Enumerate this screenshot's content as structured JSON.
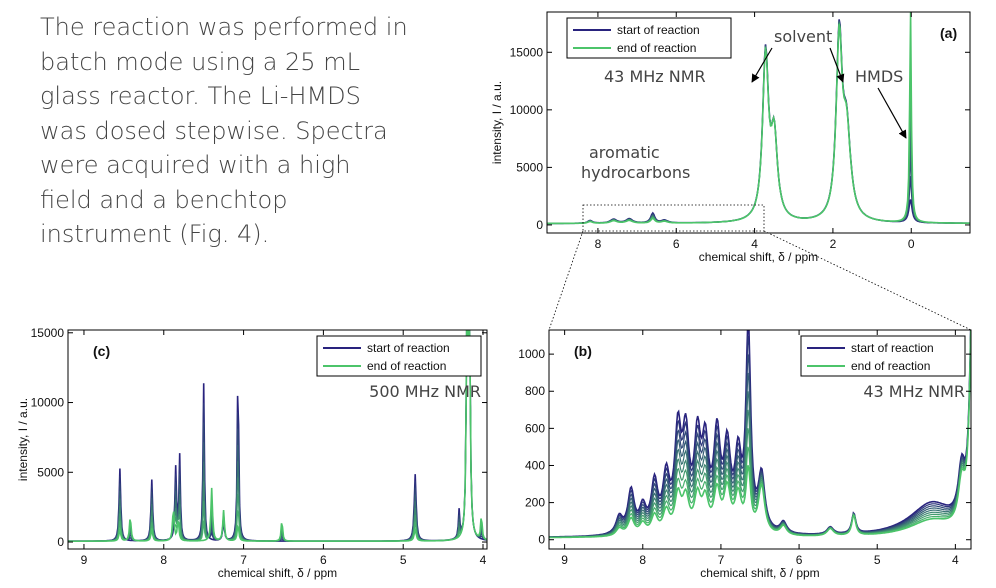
{
  "caption": [
    "The reaction was performed in",
    "batch mode using a 25 mL",
    "glass reactor. The Li-HMDS",
    "was dosed stepwise. Spectra",
    "were acquired with a high",
    "field and a benchtop",
    "instrument (Fig. 4)."
  ],
  "colors": {
    "start": "#29237e",
    "end": "#4cc46a",
    "axis": "#000000",
    "text": "#444444"
  },
  "chart_data": [
    {
      "id": "a",
      "type": "line",
      "panel_label": "(a)",
      "xlabel": "chemical shift, δ / ppm",
      "ylabel": "intensity, I / a.u.",
      "xlim": [
        9.3,
        -1.5
      ],
      "x_reversed": true,
      "ylim": [
        -700,
        18500
      ],
      "xticks": [
        8,
        6,
        4,
        2,
        0
      ],
      "xtick_labels": [
        "8",
        "6",
        "4",
        "2",
        "0"
      ],
      "yticks": [
        0,
        5000,
        10000,
        15000
      ],
      "ytick_labels": [
        "0",
        "5000",
        "10000",
        "15000"
      ],
      "legend": [
        "start of reaction",
        "end of reaction"
      ],
      "legend_position": "top-left",
      "annotations": [
        "43 MHz NMR",
        "solvent",
        "HMDS",
        "aromatic",
        "hydrocarbons"
      ],
      "series": [
        {
          "name": "start of reaction",
          "peaks": [
            [
              8.2,
              250,
              0.07
            ],
            [
              7.6,
              350,
              0.1
            ],
            [
              7.2,
              380,
              0.1
            ],
            [
              6.6,
              850,
              0.06
            ],
            [
              6.3,
              250,
              0.1
            ],
            [
              3.72,
              14300,
              0.09
            ],
            [
              3.5,
              7000,
              0.1
            ],
            [
              1.84,
              15600,
              0.09
            ],
            [
              1.65,
              7500,
              0.12
            ],
            [
              0.02,
              2000,
              0.05
            ]
          ],
          "baseline": 120
        },
        {
          "name": "end of reaction",
          "peaks": [
            [
              8.2,
              160,
              0.07
            ],
            [
              7.6,
              220,
              0.1
            ],
            [
              7.2,
              240,
              0.1
            ],
            [
              6.6,
              400,
              0.06
            ],
            [
              6.3,
              150,
              0.1
            ],
            [
              3.72,
              14000,
              0.09
            ],
            [
              3.5,
              7000,
              0.1
            ],
            [
              1.84,
              15200,
              0.09
            ],
            [
              1.65,
              7400,
              0.12
            ],
            [
              0.02,
              18500,
              0.025
            ]
          ],
          "baseline": 120
        }
      ]
    },
    {
      "id": "c",
      "type": "line",
      "panel_label": "(c)",
      "xlabel": "chemical shift, δ / ppm",
      "ylabel": "intensity, I / a.u.",
      "xlim": [
        9.2,
        3.95
      ],
      "x_reversed": true,
      "ylim": [
        -500,
        15200
      ],
      "xticks": [
        9,
        8,
        7,
        6,
        5,
        4
      ],
      "xtick_labels": [
        "9",
        "8",
        "7",
        "6",
        "5",
        "4"
      ],
      "yticks": [
        0,
        5000,
        10000,
        15000
      ],
      "ytick_labels": [
        "0",
        "5000",
        "10000",
        "15000"
      ],
      "legend": [
        "start of reaction",
        "end of reaction"
      ],
      "legend_position": "top-right",
      "annotations": [
        "500 MHz NMR"
      ],
      "series": [
        {
          "name": "start of reaction",
          "peaks": [
            [
              8.55,
              5200,
              0.012
            ],
            [
              8.15,
              4400,
              0.012
            ],
            [
              7.85,
              5200,
              0.012
            ],
            [
              7.8,
              6000,
              0.01
            ],
            [
              7.5,
              11300,
              0.01
            ],
            [
              7.07,
              13000,
              0.01
            ],
            [
              7.25,
              1500,
              0.012
            ],
            [
              4.85,
              4800,
              0.014
            ],
            [
              4.2,
              16000,
              0.012
            ],
            [
              4.17,
              16000,
              0.012
            ],
            [
              4.3,
              2000,
              0.01
            ]
          ],
          "baseline": 60
        },
        {
          "name": "end of reaction",
          "peaks": [
            [
              8.42,
              1800,
              0.012
            ],
            [
              8.55,
              900,
              0.012
            ],
            [
              8.15,
              900,
              0.012
            ],
            [
              7.88,
              2400,
              0.012
            ],
            [
              7.82,
              1500,
              0.012
            ],
            [
              7.4,
              3800,
              0.012
            ],
            [
              7.25,
              2200,
              0.012
            ],
            [
              7.07,
              1200,
              0.012
            ],
            [
              6.52,
              1600,
              0.01
            ],
            [
              4.85,
              900,
              0.014
            ],
            [
              4.2,
              16000,
              0.012
            ],
            [
              4.17,
              16000,
              0.012
            ],
            [
              4.02,
              1800,
              0.01
            ]
          ],
          "baseline": 60
        }
      ]
    },
    {
      "id": "b",
      "type": "line",
      "panel_label": "(b)",
      "xlabel": "chemical shift, δ / ppm",
      "ylabel": "",
      "xlim": [
        9.2,
        3.8
      ],
      "x_reversed": true,
      "ylim": [
        -50,
        1130
      ],
      "xticks": [
        9,
        8,
        7,
        6,
        5,
        4
      ],
      "xtick_labels": [
        "9",
        "8",
        "7",
        "6",
        "5",
        "4"
      ],
      "yticks": [
        0,
        200,
        400,
        600,
        800,
        1000
      ],
      "ytick_labels": [
        "0",
        "200",
        "400",
        "600",
        "800",
        "1000"
      ],
      "legend": [
        "start of reaction",
        "end of reaction"
      ],
      "legend_position": "top-right",
      "annotations": [
        "43 MHz NMR"
      ],
      "series": [
        {
          "name": "start of reaction",
          "peaks": [
            [
              8.3,
              90,
              0.05
            ],
            [
              8.15,
              230,
              0.05
            ],
            [
              8.0,
              130,
              0.05
            ],
            [
              7.85,
              260,
              0.05
            ],
            [
              7.7,
              280,
              0.05
            ],
            [
              7.55,
              510,
              0.05
            ],
            [
              7.45,
              470,
              0.05
            ],
            [
              7.3,
              460,
              0.05
            ],
            [
              7.2,
              420,
              0.05
            ],
            [
              7.05,
              490,
              0.05
            ],
            [
              6.92,
              420,
              0.05
            ],
            [
              6.78,
              380,
              0.05
            ],
            [
              6.65,
              1090,
              0.035
            ],
            [
              6.48,
              300,
              0.05
            ],
            [
              6.2,
              60,
              0.05
            ],
            [
              5.6,
              40,
              0.05
            ],
            [
              5.3,
              110,
              0.03
            ],
            [
              4.3,
              180,
              0.35
            ],
            [
              3.92,
              260,
              0.05
            ],
            [
              3.78,
              1400,
              0.04
            ]
          ],
          "baseline": 10
        },
        {
          "name": "end of reaction",
          "peaks": [
            [
              8.3,
              40,
              0.05
            ],
            [
              8.15,
              90,
              0.05
            ],
            [
              8.0,
              60,
              0.05
            ],
            [
              7.85,
              100,
              0.05
            ],
            [
              7.7,
              120,
              0.05
            ],
            [
              7.55,
              200,
              0.05
            ],
            [
              7.45,
              180,
              0.05
            ],
            [
              7.3,
              190,
              0.05
            ],
            [
              7.2,
              170,
              0.05
            ],
            [
              7.05,
              220,
              0.05
            ],
            [
              6.92,
              230,
              0.05
            ],
            [
              6.78,
              200,
              0.05
            ],
            [
              6.65,
              330,
              0.035
            ],
            [
              6.48,
              260,
              0.05
            ],
            [
              6.2,
              50,
              0.05
            ],
            [
              5.6,
              40,
              0.05
            ],
            [
              5.3,
              110,
              0.03
            ],
            [
              4.3,
              90,
              0.35
            ],
            [
              3.92,
              220,
              0.05
            ],
            [
              3.78,
              1400,
              0.04
            ]
          ],
          "baseline": 10
        }
      ]
    }
  ]
}
